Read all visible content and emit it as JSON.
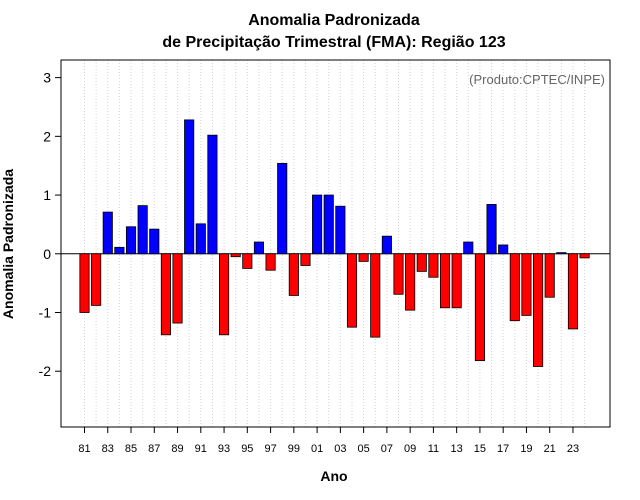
{
  "chart_data": {
    "type": "bar",
    "title": [
      "Anomalia Padronizada",
      "de Precipitação Trimestral (FMA): Região 123"
    ],
    "xlabel": "Ano",
    "ylabel": "Anomalia Padronizada",
    "source_note": "(Produto:CPTEC/INPE)",
    "ylim": [
      -2.95,
      3.3
    ],
    "yticks": [
      -2,
      -1,
      0,
      1,
      2,
      3
    ],
    "years": [
      1981,
      1982,
      1983,
      1984,
      1985,
      1986,
      1987,
      1988,
      1989,
      1990,
      1991,
      1992,
      1993,
      1994,
      1995,
      1996,
      1997,
      1998,
      1999,
      2000,
      2001,
      2002,
      2003,
      2004,
      2005,
      2006,
      2007,
      2008,
      2009,
      2010,
      2011,
      2012,
      2013,
      2014,
      2015,
      2016,
      2017,
      2018,
      2019,
      2020,
      2021,
      2022,
      2023,
      2024
    ],
    "values": [
      -1.0,
      -0.88,
      0.71,
      0.11,
      0.46,
      0.82,
      0.42,
      -1.38,
      -1.18,
      2.28,
      0.51,
      2.02,
      -1.38,
      -0.05,
      -0.25,
      0.2,
      -0.28,
      1.54,
      -0.71,
      -0.2,
      1.0,
      1.0,
      0.81,
      -1.25,
      -0.13,
      -1.42,
      0.3,
      -0.69,
      -0.96,
      -0.3,
      -0.4,
      -0.92,
      -0.92,
      0.2,
      -1.82,
      0.84,
      0.15,
      -1.14,
      -1.05,
      -1.92,
      -0.74,
      0.02,
      -1.28,
      -0.07
    ],
    "xtick_labels": [
      "81",
      "83",
      "85",
      "87",
      "89",
      "91",
      "93",
      "95",
      "97",
      "99",
      "01",
      "03",
      "05",
      "07",
      "09",
      "11",
      "13",
      "15",
      "17",
      "19",
      "21",
      "23"
    ],
    "colors": {
      "positive": "#0000ff",
      "negative": "#ff0000",
      "grid": "#d3d3d3",
      "zero_line": "#000000"
    },
    "grid": true
  }
}
